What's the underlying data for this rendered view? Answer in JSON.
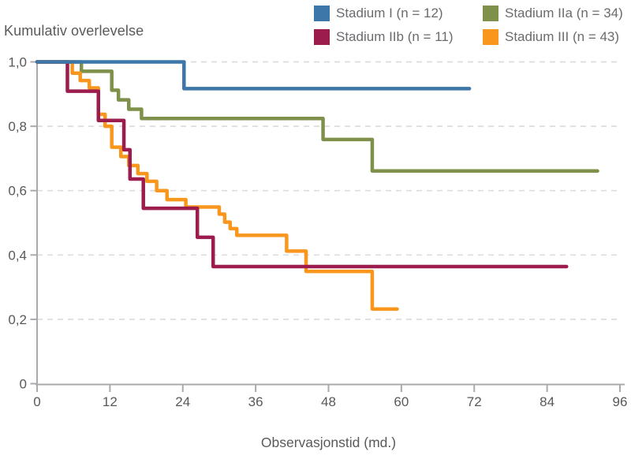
{
  "figure": {
    "title": "Kumulativ overlevelse",
    "x_axis_title": "Observasjonstid (md.)"
  },
  "colors": {
    "stadium_i_blue": "#3d76a8",
    "stadium_iia_green": "#7e9049",
    "stadium_iib_maroon": "#9c1c4e",
    "stadium_iii_orange": "#f8961d",
    "axis_line": "#a8aaad",
    "gridline": "#dcddde",
    "axis_text": "#58595b",
    "title_text": "#595a5c",
    "legend_text": "#6a6b6e",
    "background": "#ffffff"
  },
  "chart_data": {
    "type": "line",
    "subtype": "kaplan-meier-step",
    "title": "Kumulativ overlevelse",
    "xlabel": "Observasjonstid (md.)",
    "ylabel": "Kumulativ overlevelse",
    "xlim": [
      0,
      96
    ],
    "ylim": [
      0,
      1.0
    ],
    "xticks": [
      0,
      12,
      24,
      36,
      48,
      60,
      72,
      84,
      96
    ],
    "yticks": [
      {
        "v": 0.0,
        "label": "0"
      },
      {
        "v": 0.2,
        "label": "0,2"
      },
      {
        "v": 0.4,
        "label": "0,4"
      },
      {
        "v": 0.6,
        "label": "0,6"
      },
      {
        "v": 0.8,
        "label": "0,8"
      },
      {
        "v": 1.0,
        "label": "1,0"
      }
    ],
    "grid": "horizontal-dashed",
    "legend_position": "top-right",
    "draw_order": [
      1,
      3,
      2,
      0
    ],
    "series": [
      {
        "key": "stadium-i",
        "name": "Stadium I (n = 12)",
        "color": "#3d76a8",
        "end_time": 71.2,
        "steps": [
          [
            0,
            1.0
          ],
          [
            24.2,
            0.917
          ]
        ]
      },
      {
        "key": "stadium-iia",
        "name": "Stadium IIa (n = 34)",
        "color": "#7e9049",
        "end_time": 92.3,
        "steps": [
          [
            0,
            1.0
          ],
          [
            7.3,
            0.971
          ],
          [
            12.3,
            0.912
          ],
          [
            13.4,
            0.882
          ],
          [
            15.1,
            0.853
          ],
          [
            17.2,
            0.824
          ],
          [
            47.1,
            0.759
          ],
          [
            55.2,
            0.661
          ]
        ]
      },
      {
        "key": "stadium-iib",
        "name": "Stadium IIb (n = 11)",
        "color": "#9c1c4e",
        "end_time": 87.2,
        "steps": [
          [
            0,
            1.0
          ],
          [
            5.0,
            0.909
          ],
          [
            10.1,
            0.818
          ],
          [
            14.3,
            0.727
          ],
          [
            15.3,
            0.636
          ],
          [
            17.5,
            0.545
          ],
          [
            26.4,
            0.455
          ],
          [
            29.0,
            0.364
          ]
        ]
      },
      {
        "key": "stadium-iii",
        "name": "Stadium III (n = 43)",
        "color": "#f8961d",
        "end_time": 59.3,
        "steps": [
          [
            0,
            1.0
          ],
          [
            5.8,
            0.965
          ],
          [
            7.1,
            0.942
          ],
          [
            8.6,
            0.919
          ],
          [
            10.1,
            0.837
          ],
          [
            11.2,
            0.8
          ],
          [
            12.3,
            0.735
          ],
          [
            13.8,
            0.706
          ],
          [
            15.1,
            0.678
          ],
          [
            16.6,
            0.653
          ],
          [
            18.1,
            0.629
          ],
          [
            19.7,
            0.6
          ],
          [
            21.4,
            0.572
          ],
          [
            24.5,
            0.549
          ],
          [
            30.0,
            0.527
          ],
          [
            30.9,
            0.502
          ],
          [
            31.8,
            0.482
          ],
          [
            32.9,
            0.461
          ],
          [
            41.1,
            0.412
          ],
          [
            44.3,
            0.349
          ],
          [
            55.2,
            0.232
          ]
        ]
      }
    ]
  }
}
